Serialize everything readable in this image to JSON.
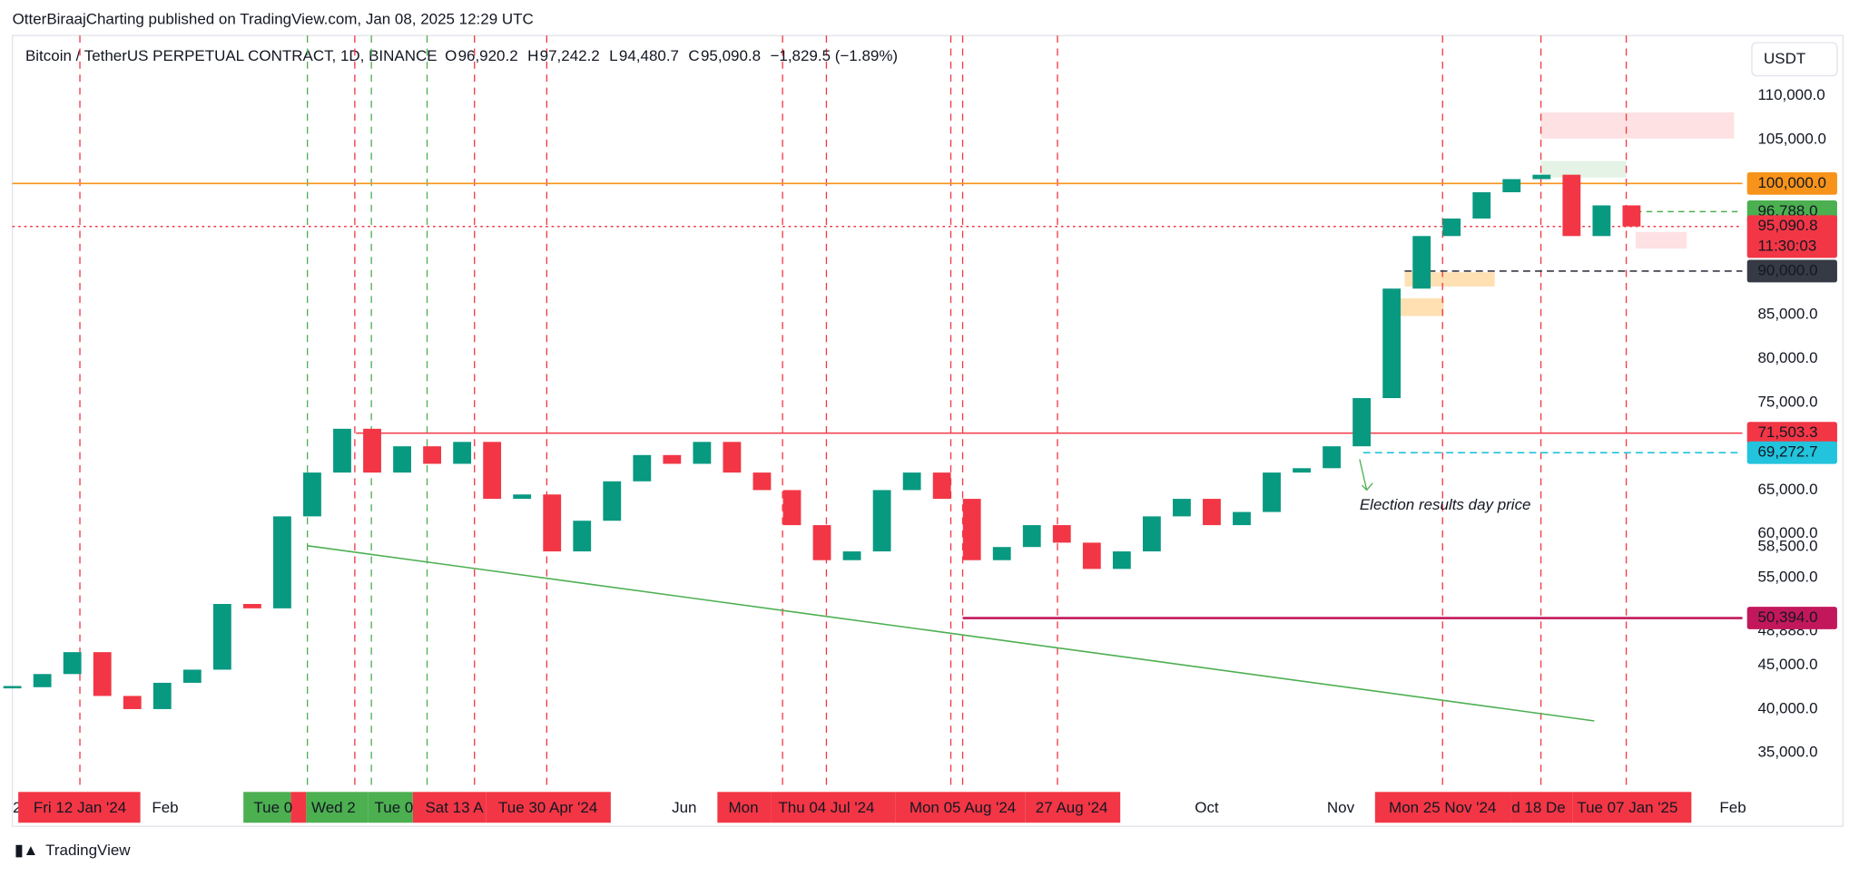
{
  "header": "OtterBiraajCharting published on TradingView.com, Jan 08, 2025 12:29 UTC",
  "footer": "TradingView",
  "chart_data": {
    "type": "candlestick",
    "title": "Bitcoin / TetherUS PERPETUAL CONTRACT, 1D, BINANCE",
    "ohlc_letters": [
      "O",
      "H",
      "L",
      "C"
    ],
    "ohlc_values": [
      "96,920.2",
      "97,242.2",
      "94,480.7",
      "95,090.8"
    ],
    "change": "−1,829.5 (−1.89%)",
    "currency": "USDT",
    "close": [
      42500,
      44000,
      46500,
      41500,
      40000,
      43000,
      44500,
      52000,
      51500,
      62000,
      67000,
      72000,
      67000,
      70000,
      68000,
      70500,
      64000,
      64500,
      58000,
      61500,
      66000,
      69000,
      68000,
      70500,
      67000,
      65000,
      61000,
      57000,
      58000,
      65000,
      67000,
      64000,
      57000,
      58500,
      61000,
      59000,
      56000,
      58000,
      62000,
      64000,
      61000,
      62500,
      67000,
      67500,
      70000,
      75500,
      88000,
      94000,
      96000,
      99000,
      100500,
      101000,
      94000,
      97500,
      95090.8
    ],
    "ylim": [
      31081,
      116811
    ],
    "yticks": [
      {
        "value": 110000,
        "label": "110,000.0"
      },
      {
        "value": 105000,
        "label": "105,000.0"
      },
      {
        "value": 85000,
        "label": "85,000.0"
      },
      {
        "value": 80000,
        "label": "80,000.0"
      },
      {
        "value": 75000,
        "label": "75,000.0"
      },
      {
        "value": 65000,
        "label": "65,000.0"
      },
      {
        "value": 60000,
        "label": "60,000.0"
      },
      {
        "value": 58500,
        "label": "58,500.0"
      },
      {
        "value": 55000,
        "label": "55,000.0"
      },
      {
        "value": 48888,
        "label": "48,888.0"
      },
      {
        "value": 45000,
        "label": "45,000.0"
      },
      {
        "value": 40000,
        "label": "40,000.0"
      },
      {
        "value": 35000,
        "label": "35,000.0"
      }
    ],
    "levels": {
      "values": [
        100000,
        96788,
        95090.8,
        90000,
        71503.3,
        69272.7,
        50394
      ],
      "value_labels": [
        "100,000.0",
        "96,788.0",
        "95,090.8",
        "90,000.0",
        "71,503.3",
        "69,272.7",
        "50,394.0"
      ],
      "colors": [
        "#f7931a",
        "#4caf50",
        "#f23645",
        "#363a45",
        "#f23645",
        "#22c3dc",
        "#c2185b"
      ]
    },
    "countdown": "11:30:03",
    "x_labels": [
      "2",
      "Fri 12 Jan '24",
      "Feb",
      "Tue 0",
      "Wed 2",
      "Tue 0",
      "Sat 13 A",
      "Tue 30 Apr '24",
      "Jun",
      "Mon",
      "Thu 04 Jul '24",
      "Mon 05 Aug '24",
      "27 Aug '24",
      "Oct",
      "Nov",
      "Mon 25 Nov '24",
      "d 18 De",
      "Tue 07 Jan '25",
      "Feb"
    ],
    "annotation": "Election results day price"
  }
}
